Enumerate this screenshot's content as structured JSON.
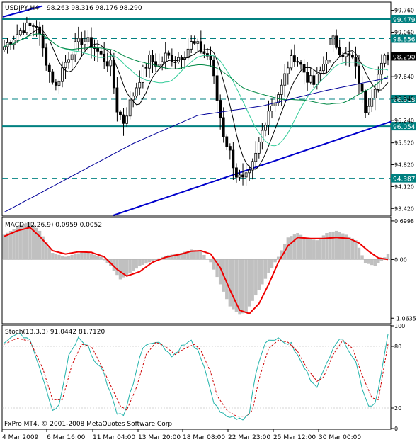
{
  "colors": {
    "background": "#ffffff",
    "frame": "#000000",
    "candle": "#000000",
    "ma_fast": "#000000",
    "ma_mid": "#33cc99",
    "ma_slow": "#008844",
    "ma_long": "#000099",
    "hline": "#008080",
    "trendline": "#0000cc",
    "macd_hist": "#c0c0c0",
    "macd_signal": "#ee0000",
    "stoch_main": "#20b2aa",
    "stoch_signal": "#cc0000",
    "label_box": "#008080"
  },
  "main": {
    "header": {
      "symbol": "USDJPY,H4",
      "ohlc": "98.263 98.316 98.176 98.290"
    },
    "price_ticks": [
      "99.760",
      "99.060",
      "98.350",
      "97.640",
      "96.940",
      "96.240",
      "95.520",
      "94.820",
      "94.120",
      "93.420"
    ],
    "price_ticks_values": [
      99.76,
      99.06,
      98.35,
      97.64,
      96.94,
      96.24,
      95.52,
      94.82,
      94.12,
      93.42
    ],
    "y_range": [
      93.2,
      100.0
    ],
    "levels": [
      {
        "label": "99.479",
        "value": 99.479,
        "style": "solid"
      },
      {
        "label": "98.856",
        "value": 98.856,
        "style": "dashed"
      },
      {
        "label": "96.918",
        "value": 96.918,
        "style": "dashed"
      },
      {
        "label": "96.054",
        "value": 96.054,
        "style": "solid"
      },
      {
        "label": "94.387",
        "value": 94.387,
        "style": "dashed"
      }
    ],
    "current_price": "98.290",
    "current_price_value": 98.29
  },
  "macd": {
    "header": "MACD(12,26,9) 0.0959 0.0052",
    "ticks": [
      "0.6998",
      "0.00",
      "-1.0635"
    ],
    "ticks_values": [
      0.6998,
      0.0,
      -1.0635
    ],
    "y_range": [
      -1.15,
      0.75
    ]
  },
  "stoch": {
    "header": "Stoch(13,3,3) 91.0442 81.7120",
    "ticks": [
      "100",
      "80",
      "20",
      "0"
    ],
    "ticks_values": [
      100,
      80,
      20,
      0
    ]
  },
  "footer": "FxPro MT4, © 2001-2008 MetaQuotes Software Corp.",
  "x_labels": [
    "4 Mar 2009",
    "6 Mar 16:00",
    "11 Mar 04:00",
    "13 Mar 20:00",
    "18 Mar 08:00",
    "22 Mar 23:00",
    "25 Mar 12:00",
    "30 Mar 00:00"
  ],
  "chart_data": {
    "type": "candlestick",
    "symbol": "USDJPY",
    "timeframe": "H4",
    "bar_count": 120,
    "close_path": [
      [
        0,
        98.6
      ],
      [
        6,
        99.2
      ],
      [
        10,
        99.3
      ],
      [
        12,
        98.5
      ],
      [
        14,
        97.8
      ],
      [
        16,
        97.3
      ],
      [
        18,
        97.9
      ],
      [
        21,
        98.5
      ],
      [
        24,
        98.8
      ],
      [
        27,
        98.7
      ],
      [
        30,
        98.3
      ],
      [
        33,
        98.0
      ],
      [
        35,
        96.6
      ],
      [
        37,
        96.2
      ],
      [
        39,
        96.8
      ],
      [
        42,
        97.6
      ],
      [
        45,
        98.2
      ],
      [
        48,
        98.0
      ],
      [
        50,
        98.3
      ],
      [
        53,
        98.2
      ],
      [
        56,
        98.4
      ],
      [
        58,
        98.7
      ],
      [
        60,
        98.6
      ],
      [
        62,
        98.4
      ],
      [
        64,
        98.2
      ],
      [
        66,
        96.9
      ],
      [
        68,
        95.8
      ],
      [
        70,
        95.2
      ],
      [
        72,
        94.5
      ],
      [
        74,
        94.3
      ],
      [
        76,
        94.5
      ],
      [
        78,
        95.1
      ],
      [
        80,
        95.9
      ],
      [
        82,
        96.6
      ],
      [
        84,
        96.9
      ],
      [
        86,
        97.3
      ],
      [
        88,
        98.0
      ],
      [
        90,
        98.3
      ],
      [
        92,
        98.0
      ],
      [
        94,
        97.6
      ],
      [
        96,
        97.4
      ],
      [
        98,
        97.8
      ],
      [
        100,
        98.3
      ],
      [
        102,
        98.8
      ],
      [
        104,
        98.5
      ],
      [
        106,
        98.3
      ],
      [
        108,
        98.2
      ],
      [
        110,
        97.5
      ],
      [
        112,
        96.6
      ],
      [
        114,
        97.1
      ],
      [
        116,
        97.7
      ],
      [
        118,
        98.2
      ],
      [
        119,
        98.29
      ]
    ],
    "macd_hist_path": [
      [
        0,
        0.45
      ],
      [
        5,
        0.62
      ],
      [
        8,
        0.68
      ],
      [
        11,
        0.52
      ],
      [
        15,
        0.12
      ],
      [
        19,
        0.05
      ],
      [
        22,
        0.1
      ],
      [
        25,
        0.14
      ],
      [
        30,
        0.05
      ],
      [
        33,
        -0.12
      ],
      [
        36,
        -0.36
      ],
      [
        39,
        -0.25
      ],
      [
        42,
        -0.12
      ],
      [
        45,
        -0.05
      ],
      [
        50,
        0.07
      ],
      [
        55,
        0.12
      ],
      [
        58,
        0.18
      ],
      [
        61,
        0.15
      ],
      [
        64,
        -0.05
      ],
      [
        67,
        -0.45
      ],
      [
        70,
        -0.85
      ],
      [
        73,
        -1.0
      ],
      [
        75,
        -0.95
      ],
      [
        78,
        -0.65
      ],
      [
        82,
        -0.25
      ],
      [
        85,
        0.05
      ],
      [
        88,
        0.4
      ],
      [
        91,
        0.48
      ],
      [
        94,
        0.38
      ],
      [
        97,
        0.35
      ],
      [
        100,
        0.48
      ],
      [
        103,
        0.52
      ],
      [
        106,
        0.45
      ],
      [
        109,
        0.35
      ],
      [
        112,
        -0.06
      ],
      [
        115,
        -0.12
      ],
      [
        117,
        -0.02
      ],
      [
        119,
        0.1
      ]
    ],
    "macd_signal_path": [
      [
        0,
        0.42
      ],
      [
        4,
        0.52
      ],
      [
        8,
        0.58
      ],
      [
        11,
        0.42
      ],
      [
        15,
        0.16
      ],
      [
        19,
        0.1
      ],
      [
        23,
        0.14
      ],
      [
        27,
        0.13
      ],
      [
        31,
        0.05
      ],
      [
        35,
        -0.18
      ],
      [
        38,
        -0.3
      ],
      [
        42,
        -0.22
      ],
      [
        46,
        -0.05
      ],
      [
        50,
        0.04
      ],
      [
        55,
        0.1
      ],
      [
        58,
        0.15
      ],
      [
        61,
        0.16
      ],
      [
        64,
        0.1
      ],
      [
        67,
        -0.15
      ],
      [
        70,
        -0.55
      ],
      [
        73,
        -0.92
      ],
      [
        76,
        -0.98
      ],
      [
        79,
        -0.8
      ],
      [
        82,
        -0.45
      ],
      [
        85,
        -0.05
      ],
      [
        88,
        0.25
      ],
      [
        91,
        0.4
      ],
      [
        95,
        0.38
      ],
      [
        99,
        0.38
      ],
      [
        103,
        0.4
      ],
      [
        107,
        0.38
      ],
      [
        110,
        0.3
      ],
      [
        113,
        0.15
      ],
      [
        116,
        0.03
      ],
      [
        119,
        0.0
      ]
    ],
    "stoch_main_path": [
      [
        0,
        85
      ],
      [
        4,
        92
      ],
      [
        8,
        88
      ],
      [
        12,
        50
      ],
      [
        15,
        18
      ],
      [
        17,
        22
      ],
      [
        20,
        70
      ],
      [
        23,
        88
      ],
      [
        26,
        80
      ],
      [
        28,
        65
      ],
      [
        30,
        60
      ],
      [
        33,
        35
      ],
      [
        35,
        15
      ],
      [
        37,
        12
      ],
      [
        40,
        45
      ],
      [
        43,
        80
      ],
      [
        46,
        85
      ],
      [
        49,
        82
      ],
      [
        52,
        70
      ],
      [
        55,
        80
      ],
      [
        58,
        85
      ],
      [
        60,
        75
      ],
      [
        63,
        50
      ],
      [
        65,
        25
      ],
      [
        67,
        15
      ],
      [
        69,
        12
      ],
      [
        72,
        10
      ],
      [
        74,
        8
      ],
      [
        76,
        15
      ],
      [
        78,
        55
      ],
      [
        81,
        85
      ],
      [
        84,
        88
      ],
      [
        86,
        85
      ],
      [
        89,
        82
      ],
      [
        92,
        65
      ],
      [
        95,
        48
      ],
      [
        97,
        42
      ],
      [
        99,
        55
      ],
      [
        102,
        80
      ],
      [
        104,
        88
      ],
      [
        106,
        82
      ],
      [
        109,
        65
      ],
      [
        111,
        40
      ],
      [
        113,
        22
      ],
      [
        115,
        25
      ],
      [
        117,
        55
      ],
      [
        119,
        91
      ]
    ],
    "stoch_signal_path": [
      [
        0,
        82
      ],
      [
        4,
        88
      ],
      [
        8,
        85
      ],
      [
        12,
        58
      ],
      [
        15,
        28
      ],
      [
        18,
        28
      ],
      [
        21,
        62
      ],
      [
        24,
        82
      ],
      [
        27,
        80
      ],
      [
        30,
        62
      ],
      [
        33,
        42
      ],
      [
        36,
        22
      ],
      [
        38,
        18
      ],
      [
        41,
        40
      ],
      [
        44,
        72
      ],
      [
        47,
        84
      ],
      [
        50,
        80
      ],
      [
        53,
        72
      ],
      [
        56,
        78
      ],
      [
        59,
        82
      ],
      [
        61,
        76
      ],
      [
        64,
        55
      ],
      [
        66,
        32
      ],
      [
        69,
        18
      ],
      [
        72,
        12
      ],
      [
        75,
        12
      ],
      [
        77,
        18
      ],
      [
        79,
        48
      ],
      [
        82,
        78
      ],
      [
        85,
        86
      ],
      [
        88,
        84
      ],
      [
        91,
        75
      ],
      [
        94,
        58
      ],
      [
        97,
        46
      ],
      [
        99,
        50
      ],
      [
        102,
        72
      ],
      [
        105,
        86
      ],
      [
        108,
        78
      ],
      [
        111,
        52
      ],
      [
        114,
        30
      ],
      [
        116,
        28
      ],
      [
        119,
        82
      ]
    ]
  }
}
